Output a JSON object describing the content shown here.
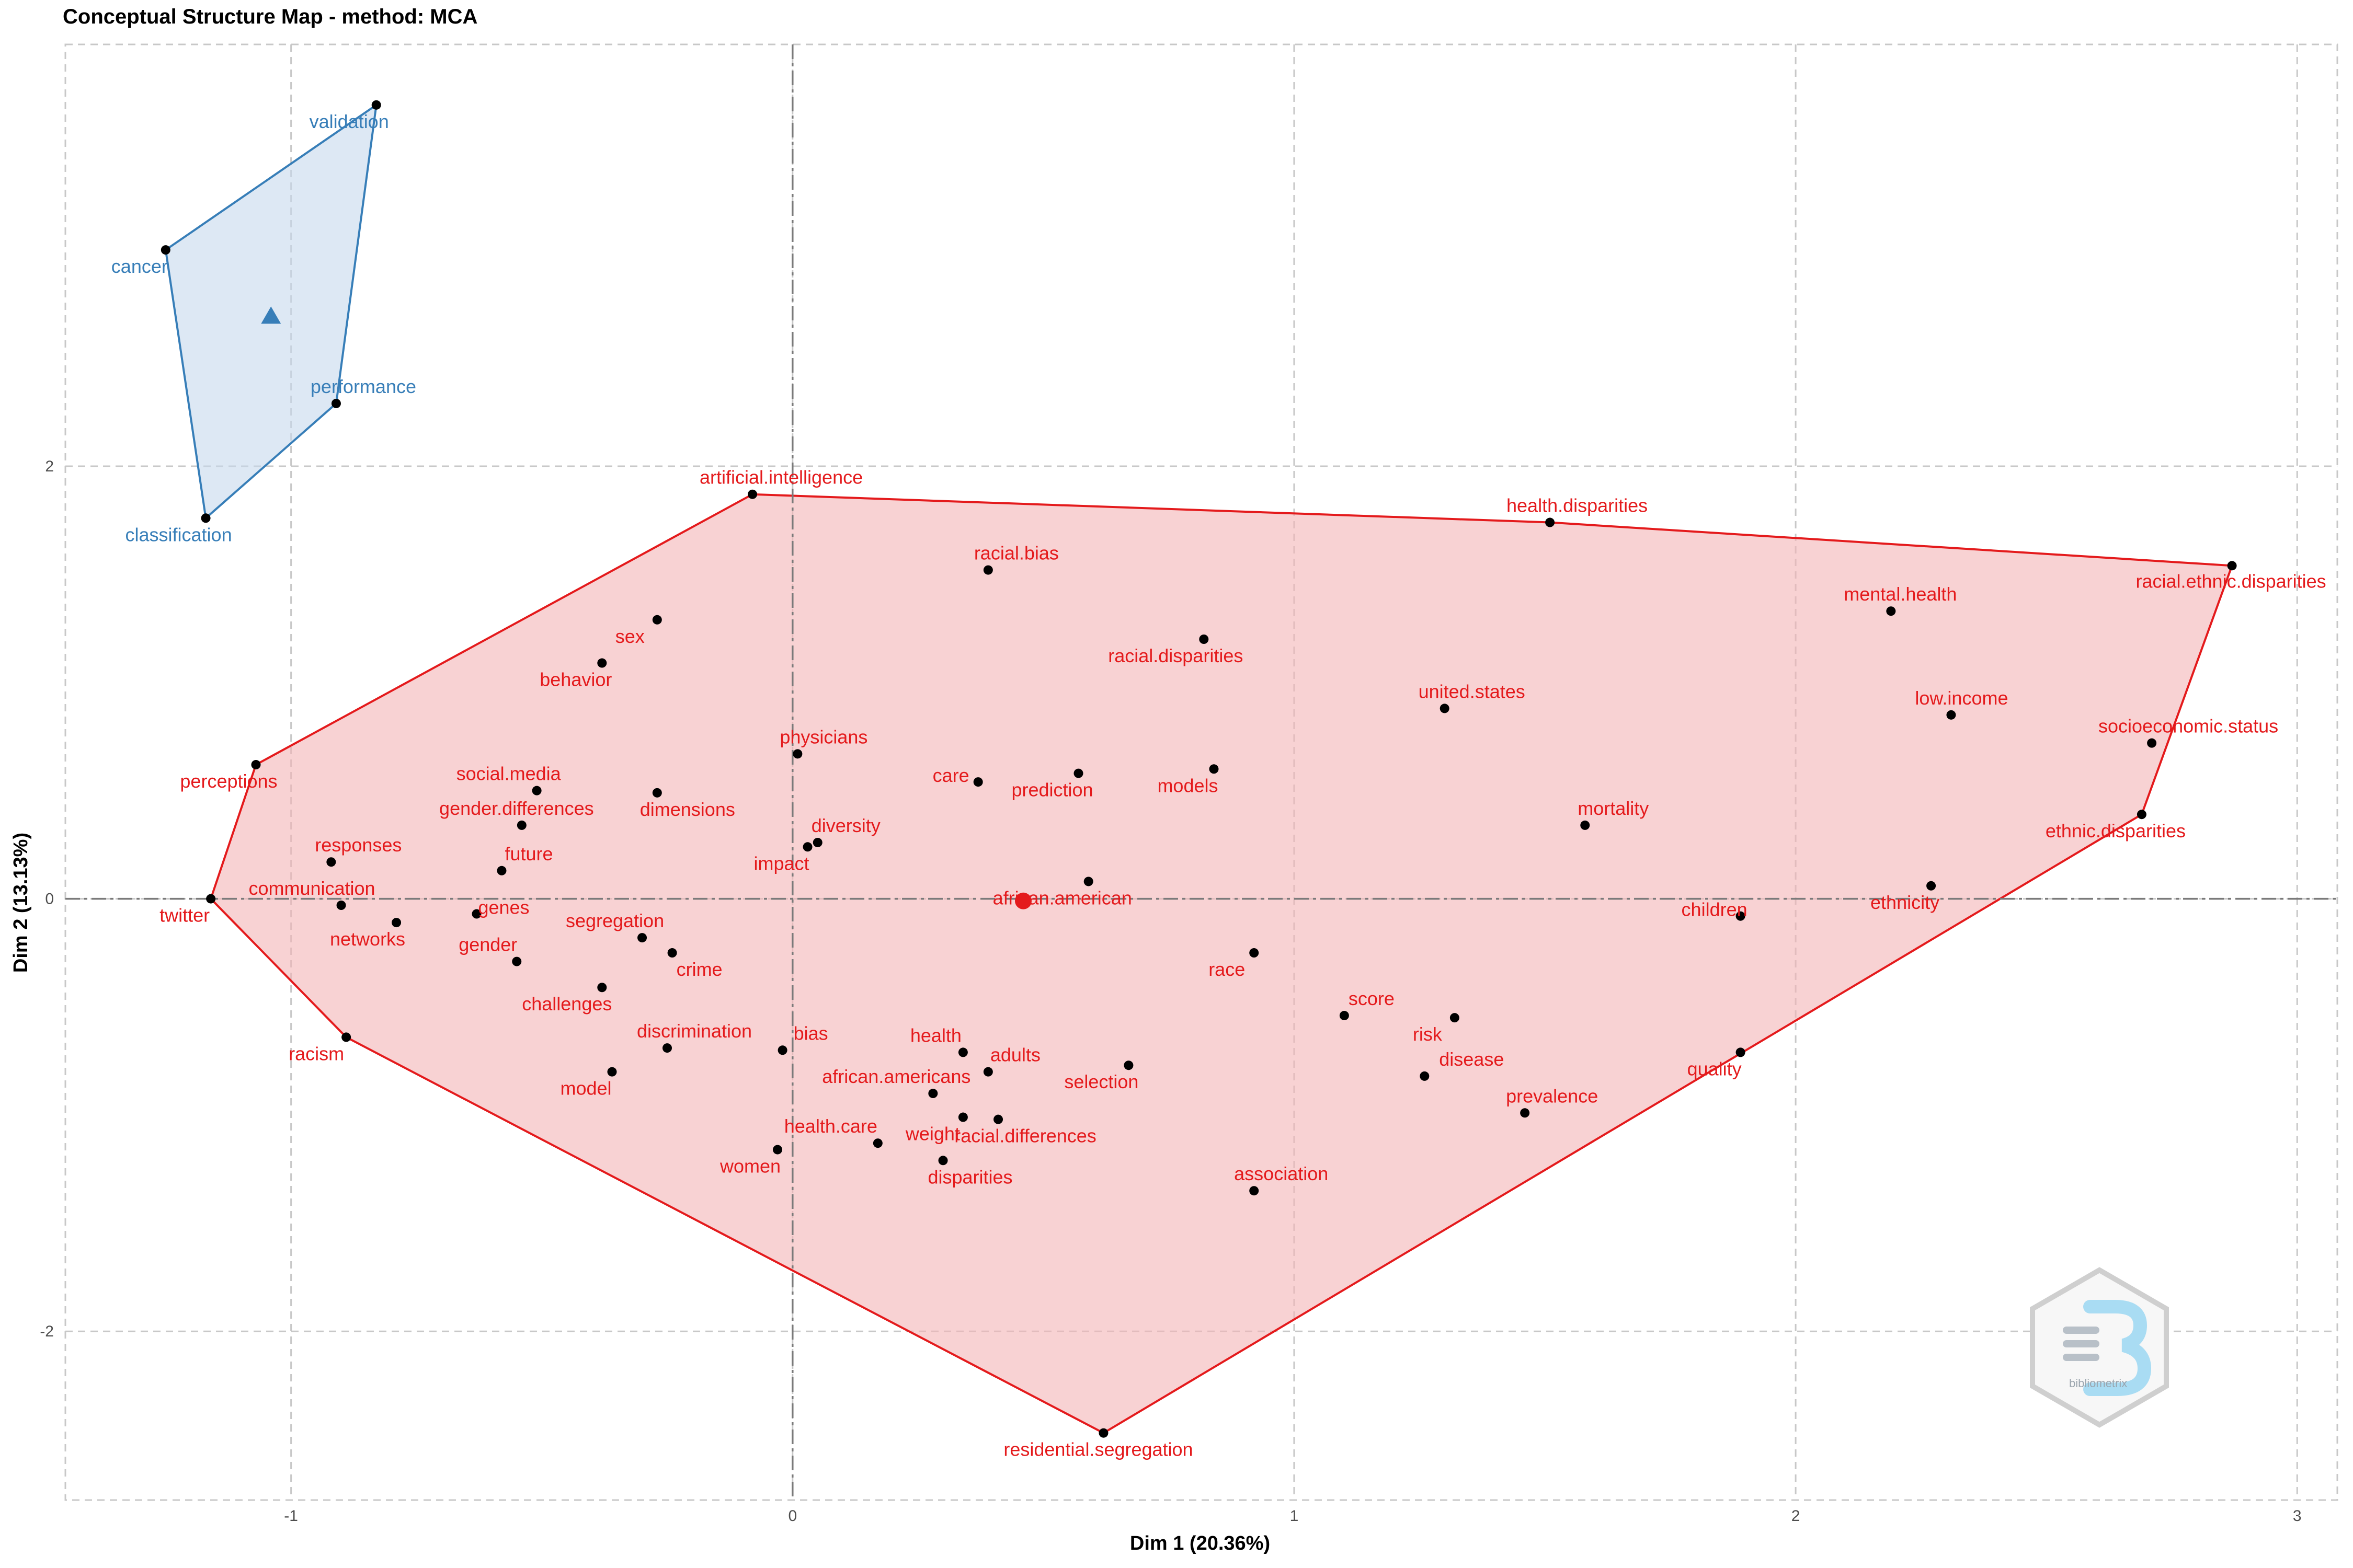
{
  "chart_data": {
    "type": "scatter",
    "title": "Conceptual Structure Map - method: MCA",
    "xlabel": "Dim 1 (20.36%)",
    "ylabel": "Dim 2 (13.13%)",
    "xlim": [
      -1.45,
      3.08
    ],
    "ylim": [
      -2.78,
      3.95
    ],
    "xticks": [
      -1,
      0,
      1,
      2,
      3
    ],
    "xtick_labels": [
      "-1",
      "0",
      "1",
      "2",
      "3"
    ],
    "yticks": [
      -2,
      0,
      2
    ],
    "ytick_labels": [
      "-2",
      "0",
      "2"
    ],
    "grid": true,
    "legend": "none",
    "reference_lines": {
      "x": 0,
      "y": 0
    },
    "colors": {
      "cluster_1": "#e41a1c",
      "cluster_2": "#377eb8",
      "fill_1": "#f4b4b5",
      "fill_2": "#c6d8ec"
    },
    "clusters": [
      {
        "id": 1,
        "color": "#e41a1c",
        "centroid": {
          "x": 0.46,
          "y": -0.01
        },
        "points": [
          {
            "label": "artificial.intelligence",
            "x": -0.08,
            "y": 1.87
          },
          {
            "label": "health.disparities",
            "x": 1.51,
            "y": 1.74
          },
          {
            "label": "racial.ethnic.disparities",
            "x": 2.87,
            "y": 1.54
          },
          {
            "label": "racial.bias",
            "x": 0.39,
            "y": 1.52
          },
          {
            "label": "mental.health",
            "x": 2.19,
            "y": 1.33
          },
          {
            "label": "racial.disparities",
            "x": 0.82,
            "y": 1.2
          },
          {
            "label": "sex",
            "x": -0.27,
            "y": 1.29
          },
          {
            "label": "behavior",
            "x": -0.38,
            "y": 1.09
          },
          {
            "label": "united.states",
            "x": 1.3,
            "y": 0.88
          },
          {
            "label": "low.income",
            "x": 2.31,
            "y": 0.85
          },
          {
            "label": "socioeconomic.status",
            "x": 2.71,
            "y": 0.72
          },
          {
            "label": "physicians",
            "x": 0.01,
            "y": 0.67
          },
          {
            "label": "perceptions",
            "x": -1.07,
            "y": 0.62
          },
          {
            "label": "care",
            "x": 0.37,
            "y": 0.54
          },
          {
            "label": "prediction",
            "x": 0.57,
            "y": 0.58
          },
          {
            "label": "models",
            "x": 0.84,
            "y": 0.6
          },
          {
            "label": "social.media",
            "x": -0.51,
            "y": 0.5
          },
          {
            "label": "dimensions",
            "x": -0.27,
            "y": 0.49
          },
          {
            "label": "gender.differences",
            "x": -0.54,
            "y": 0.34
          },
          {
            "label": "mortality",
            "x": 1.58,
            "y": 0.34
          },
          {
            "label": "ethnic.disparities",
            "x": 2.69,
            "y": 0.39
          },
          {
            "label": "diversity",
            "x": 0.05,
            "y": 0.26
          },
          {
            "label": "impact",
            "x": 0.03,
            "y": 0.24
          },
          {
            "label": "responses",
            "x": -0.92,
            "y": 0.17
          },
          {
            "label": "future",
            "x": -0.58,
            "y": 0.13
          },
          {
            "label": "african.american",
            "x": 0.59,
            "y": 0.08
          },
          {
            "label": "ethnicity",
            "x": 2.27,
            "y": 0.06
          },
          {
            "label": "twitter",
            "x": -1.16,
            "y": 0.0
          },
          {
            "label": "communication",
            "x": -0.9,
            "y": -0.03
          },
          {
            "label": "genes",
            "x": -0.63,
            "y": -0.07
          },
          {
            "label": "networks",
            "x": -0.79,
            "y": -0.11
          },
          {
            "label": "children",
            "x": 1.89,
            "y": -0.08
          },
          {
            "label": "segregation",
            "x": -0.3,
            "y": -0.18
          },
          {
            "label": "crime",
            "x": -0.24,
            "y": -0.25
          },
          {
            "label": "race",
            "x": 0.92,
            "y": -0.25
          },
          {
            "label": "gender",
            "x": -0.55,
            "y": -0.29
          },
          {
            "label": "challenges",
            "x": -0.38,
            "y": -0.41
          },
          {
            "label": "score",
            "x": 1.1,
            "y": -0.54
          },
          {
            "label": "risk",
            "x": 1.32,
            "y": -0.55
          },
          {
            "label": "racism",
            "x": -0.89,
            "y": -0.64
          },
          {
            "label": "discrimination",
            "x": -0.25,
            "y": -0.69
          },
          {
            "label": "bias",
            "x": -0.02,
            "y": -0.7
          },
          {
            "label": "health",
            "x": 0.34,
            "y": -0.71
          },
          {
            "label": "selection",
            "x": 0.67,
            "y": -0.77
          },
          {
            "label": "adults",
            "x": 0.39,
            "y": -0.8
          },
          {
            "label": "quality",
            "x": 1.89,
            "y": -0.71
          },
          {
            "label": "model",
            "x": -0.36,
            "y": -0.8
          },
          {
            "label": "disease",
            "x": 1.26,
            "y": -0.82
          },
          {
            "label": "african.americans",
            "x": 0.28,
            "y": -0.9
          },
          {
            "label": "weight",
            "x": 0.34,
            "y": -1.01
          },
          {
            "label": "racial.differences",
            "x": 0.41,
            "y": -1.02
          },
          {
            "label": "prevalence",
            "x": 1.46,
            "y": -0.99
          },
          {
            "label": "health.care",
            "x": 0.17,
            "y": -1.13
          },
          {
            "label": "women",
            "x": -0.03,
            "y": -1.16
          },
          {
            "label": "disparities",
            "x": 0.3,
            "y": -1.21
          },
          {
            "label": "association",
            "x": 0.92,
            "y": -1.35
          },
          {
            "label": "residential.segregation",
            "x": 0.62,
            "y": -2.47
          }
        ]
      },
      {
        "id": 2,
        "color": "#377eb8",
        "centroid": {
          "x": -1.04,
          "y": 2.69
        },
        "points": [
          {
            "label": "validation",
            "x": -0.83,
            "y": 3.67
          },
          {
            "label": "cancer",
            "x": -1.25,
            "y": 3.0
          },
          {
            "label": "performance",
            "x": -0.91,
            "y": 2.29
          },
          {
            "label": "classification",
            "x": -1.17,
            "y": 1.76
          }
        ]
      }
    ]
  },
  "logo": {
    "icon": "bibliometrix-logo-icon",
    "text": "bibliometrix"
  }
}
